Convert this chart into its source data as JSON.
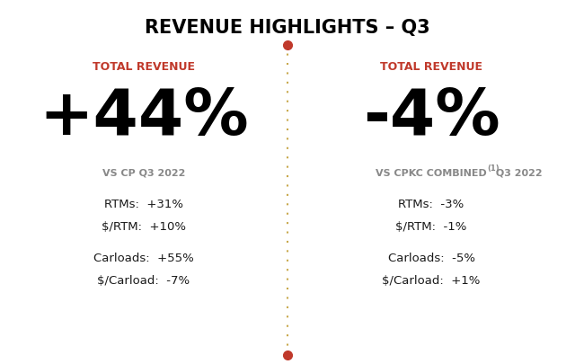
{
  "title": "REVENUE HIGHLIGHTS – Q3",
  "title_fontsize": 15,
  "title_color": "#000000",
  "background_color": "#ffffff",
  "divider_color": "#c8a84b",
  "dot_color": "#c0392b",
  "left": {
    "label": "TOTAL REVENUE",
    "label_color": "#c0392b",
    "big_number": "+44%",
    "big_number_color": "#000000",
    "sub_label": "VS CP Q3 2022",
    "sub_label_color": "#888888",
    "stats": [
      "RTMs:  +31%",
      "$/RTM:  +10%",
      "Carloads:  +55%",
      "$/Carload:  -7%"
    ],
    "stats_color": "#1a1a1a"
  },
  "right": {
    "label": "TOTAL REVENUE",
    "label_color": "#c0392b",
    "big_number": "-4%",
    "big_number_color": "#000000",
    "sub_label": "VS CPKC COMBINEDⁿ Q3 2022",
    "sub_label_color": "#888888",
    "stats": [
      "RTMs:  -3%",
      "$/RTM:  -1%",
      "Carloads:  -5%",
      "$/Carload:  +1%"
    ],
    "stats_color": "#1a1a1a"
  }
}
